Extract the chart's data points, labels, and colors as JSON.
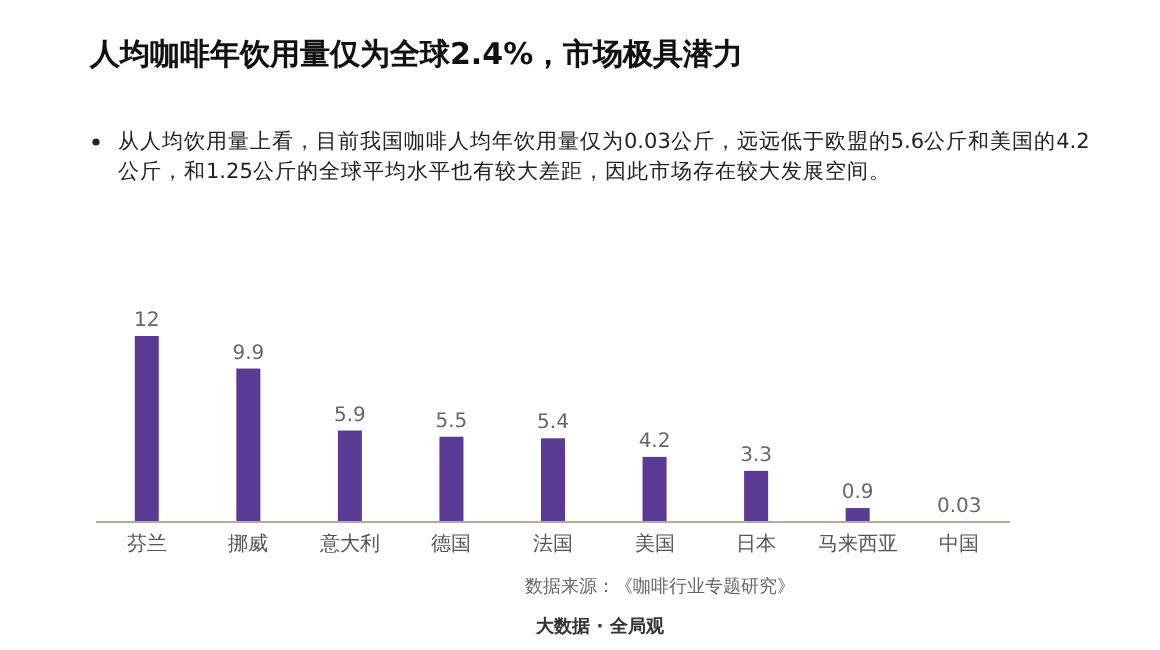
{
  "chart_data": {
    "type": "bar",
    "title": "人均咖啡年饮用量仅为全球2.4%，市场极具潜力",
    "subtitle": "从人均饮用量上看，目前我国咖啡人均年饮用量仅为0.03公斤，远远低于欧盟的5.6公斤和美国的4.2公斤，和1.25公斤的全球平均水平也有较大差距，因此市场存在较大发展空间。",
    "categories": [
      "芬兰",
      "挪威",
      "意大利",
      "德国",
      "法国",
      "美国",
      "日本",
      "马来西亚",
      "中国"
    ],
    "values": [
      12,
      9.9,
      5.9,
      5.5,
      5.4,
      4.2,
      3.3,
      0.9,
      0.03
    ],
    "color": "#5b3a96",
    "data_labels": true,
    "annotations": [
      "数据来源：《咖啡行业专题研究》",
      "大数据 · 全局观"
    ]
  }
}
